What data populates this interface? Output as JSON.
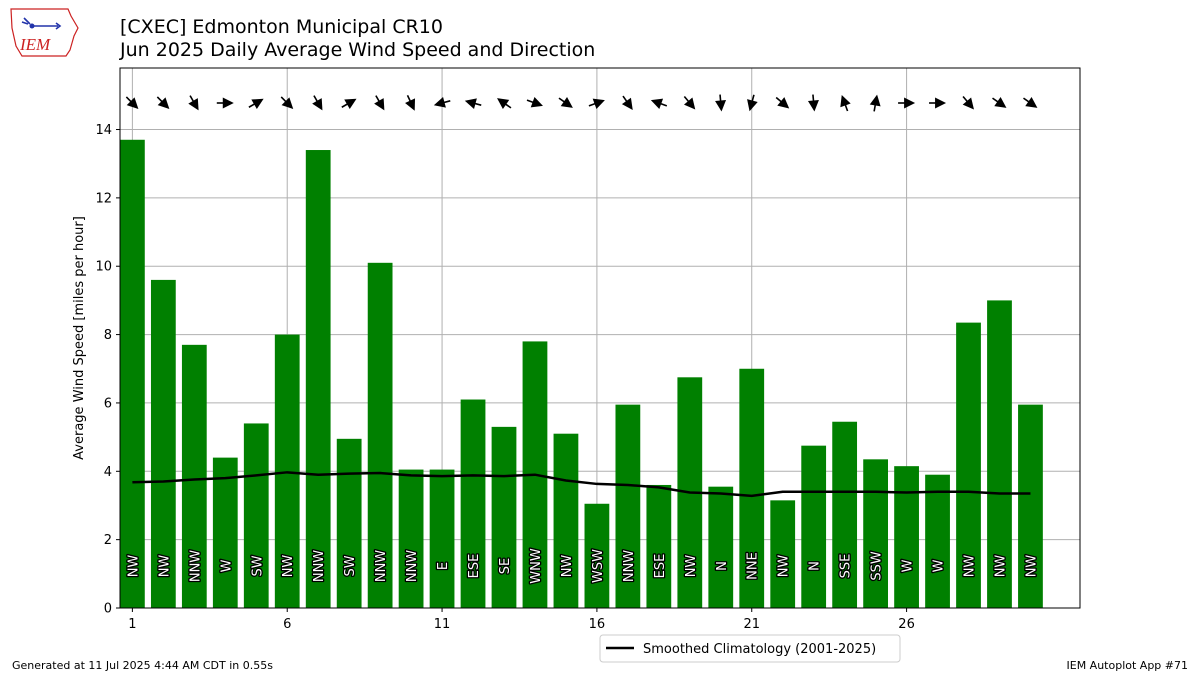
{
  "header": {
    "title_line1": "[CXEC] Edmonton Municipal CR10",
    "title_line2": "Jun 2025 Daily Average Wind Speed and Direction"
  },
  "logo": {
    "text": "IEM"
  },
  "footer": {
    "generated": "Generated at 11 Jul 2025 4:44 AM CDT in 0.55s",
    "app": "IEM Autoplot App #71"
  },
  "colors": {
    "bar": "#008000",
    "line": "#000000",
    "grid": "#b0b0b0",
    "logo": "#cc2222"
  },
  "chart_data": {
    "type": "bar",
    "ylabel": "Average Wind Speed [miles per hour]",
    "xlim": [
      0.6,
      31.6
    ],
    "ylim": [
      0,
      15.8
    ],
    "x_ticks": [
      1,
      6,
      11,
      16,
      21,
      26
    ],
    "y_ticks": [
      0,
      2,
      4,
      6,
      8,
      10,
      12,
      14
    ],
    "grid": true,
    "days": [
      1,
      2,
      3,
      4,
      5,
      6,
      7,
      8,
      9,
      10,
      11,
      12,
      13,
      14,
      15,
      16,
      17,
      18,
      19,
      20,
      21,
      22,
      23,
      24,
      25,
      26,
      27,
      28,
      29,
      30
    ],
    "values": [
      13.7,
      9.6,
      7.7,
      4.4,
      5.4,
      8.0,
      13.4,
      4.95,
      10.1,
      4.05,
      4.05,
      6.1,
      5.3,
      7.8,
      5.1,
      3.05,
      5.95,
      3.6,
      6.75,
      3.55,
      7.0,
      3.15,
      4.75,
      5.45,
      4.35,
      4.15,
      3.9,
      8.35,
      9.0,
      5.95
    ],
    "directions": [
      "NW",
      "NW",
      "NNW",
      "W",
      "SW",
      "NW",
      "NNW",
      "SW",
      "NNW",
      "NNW",
      "E",
      "ESE",
      "SE",
      "WNW",
      "NW",
      "WSW",
      "NNW",
      "ESE",
      "NW",
      "N",
      "NNE",
      "NW",
      "N",
      "SSE",
      "SSW",
      "W",
      "W",
      "NW",
      "NW",
      "NW"
    ],
    "arrow_bearings_deg": [
      315,
      315,
      330,
      270,
      240,
      315,
      330,
      240,
      330,
      335,
      75,
      105,
      125,
      290,
      305,
      250,
      325,
      110,
      320,
      355,
      15,
      310,
      355,
      160,
      190,
      270,
      270,
      320,
      305,
      305
    ],
    "arrow_note": "arrows point in the direction the wind blows toward; bearing is the direction the wind comes from",
    "series": [
      {
        "name": "Smoothed Climatology (2001-2025)",
        "values": [
          3.68,
          3.7,
          3.76,
          3.8,
          3.88,
          3.97,
          3.9,
          3.93,
          3.95,
          3.88,
          3.86,
          3.88,
          3.86,
          3.9,
          3.73,
          3.63,
          3.6,
          3.53,
          3.38,
          3.35,
          3.28,
          3.4,
          3.4,
          3.4,
          3.4,
          3.38,
          3.4,
          3.4,
          3.35,
          3.35
        ]
      }
    ],
    "legend_position": "bottom-center"
  }
}
